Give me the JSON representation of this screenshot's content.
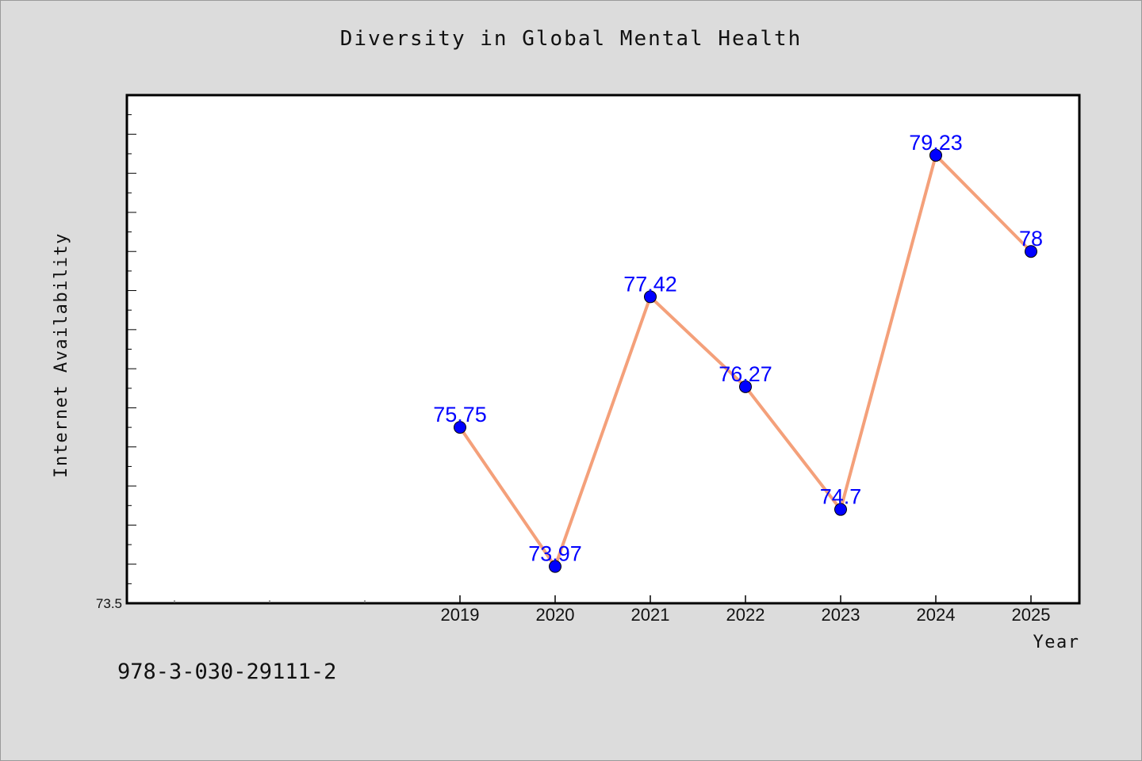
{
  "chart_data": {
    "type": "line",
    "title": "Diversity in Global Mental Health",
    "xlabel": "Year",
    "ylabel": "Internet Availability",
    "categories": [
      "2019",
      "2020",
      "2021",
      "2022",
      "2023",
      "2024",
      "2025"
    ],
    "series": [
      {
        "values": [
          75.75,
          73.97,
          77.42,
          76.27,
          74.7,
          79.23,
          78
        ],
        "data_labels": [
          "75.75",
          "73.97",
          "77.42",
          "76.27",
          "74.7",
          "79.23",
          "78"
        ]
      }
    ],
    "ylim": [
      73.5,
      80.0
    ],
    "ytick_labels": [
      "73.5"
    ],
    "grid": false,
    "line_color": "#f4a07a",
    "marker_color": "#0000ff",
    "label_color": "#0000ff",
    "plot_background": "#ffffff"
  },
  "footer": {
    "isbn": "978-3-030-29111-2"
  }
}
